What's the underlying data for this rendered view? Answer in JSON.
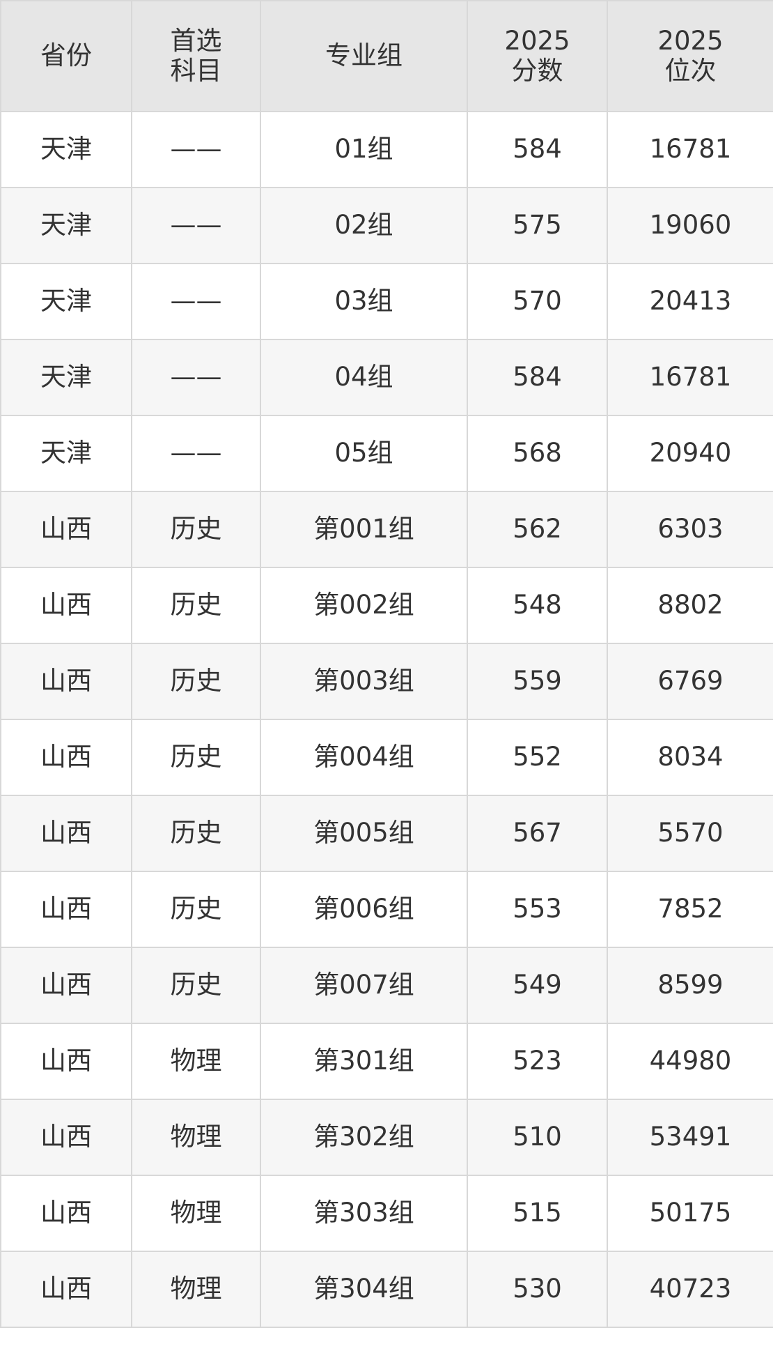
{
  "table": {
    "header": [
      "省份",
      "首选\n科目",
      "专业组",
      "2025\n分数",
      "2025\n位次"
    ],
    "rows": [
      [
        "天津",
        "——",
        "01组",
        584,
        16781
      ],
      [
        "天津",
        "——",
        "02组",
        575,
        19060
      ],
      [
        "天津",
        "——",
        "03组",
        570,
        20413
      ],
      [
        "天津",
        "——",
        "04组",
        584,
        16781
      ],
      [
        "天津",
        "——",
        "05组",
        568,
        20940
      ],
      [
        "山西",
        "历史",
        "第001组",
        562,
        6303
      ],
      [
        "山西",
        "历史",
        "第002组",
        548,
        8802
      ],
      [
        "山西",
        "历史",
        "第003组",
        559,
        6769
      ],
      [
        "山西",
        "历史",
        "第004组",
        552,
        8034
      ],
      [
        "山西",
        "历史",
        "第005组",
        567,
        5570
      ],
      [
        "山西",
        "历史",
        "第006组",
        553,
        7852
      ],
      [
        "山西",
        "历史",
        "第007组",
        549,
        8599
      ],
      [
        "山西",
        "物理",
        "第301组",
        523,
        44980
      ],
      [
        "山西",
        "物理",
        "第302组",
        510,
        53491
      ],
      [
        "山西",
        "物理",
        "第303组",
        515,
        50175
      ],
      [
        "山西",
        "物理",
        "第304组",
        530,
        40723
      ]
    ]
  }
}
